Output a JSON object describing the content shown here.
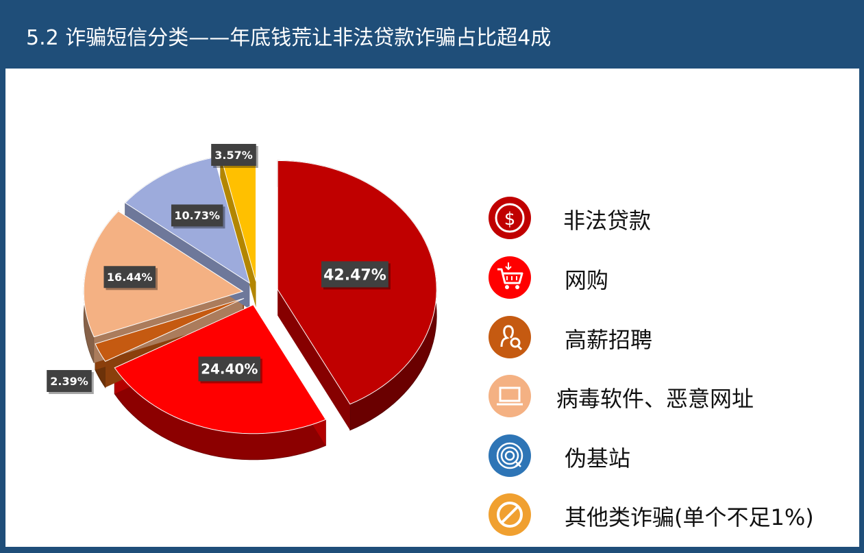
{
  "header": {
    "title": "5.2 诈骗短信分类——年底钱荒让非法贷款诈骗占比超4成"
  },
  "chart_data": {
    "type": "pie",
    "title": "",
    "slices": [
      {
        "name": "非法贷款",
        "value": 42.47,
        "label": "42.47%",
        "color": "#c00000"
      },
      {
        "name": "网购",
        "value": 24.4,
        "label": "24.40%",
        "color": "#ff0000"
      },
      {
        "name": "高薪招聘",
        "value": 2.39,
        "label": "2.39%",
        "color": "#c55a11"
      },
      {
        "name": "病毒软件、恶意网址",
        "value": 16.44,
        "label": "16.44%",
        "color": "#f4b183"
      },
      {
        "name": "伪基站",
        "value": 10.73,
        "label": "10.73%",
        "color": "#9dabdc"
      },
      {
        "name": "其他类诈骗(单个不足1%)",
        "value": 3.57,
        "label": "3.57%",
        "color": "#ffc000"
      }
    ]
  },
  "legend": {
    "items": [
      {
        "label": "非法贷款",
        "icon": "dollar-icon",
        "color": "#c00000"
      },
      {
        "label": "网购",
        "icon": "shopping-cart-icon",
        "color": "#ff0000"
      },
      {
        "label": "高薪招聘",
        "icon": "person-search-icon",
        "color": "#c55a11"
      },
      {
        "label": "病毒软件、恶意网址",
        "icon": "laptop-icon",
        "color": "#f4b183"
      },
      {
        "label": "伪基站",
        "icon": "signal-target-icon",
        "color": "#2e75b6"
      },
      {
        "label": "其他类诈骗(单个不足1%)",
        "icon": "prohibited-icon",
        "color": "#f0a030"
      }
    ]
  }
}
